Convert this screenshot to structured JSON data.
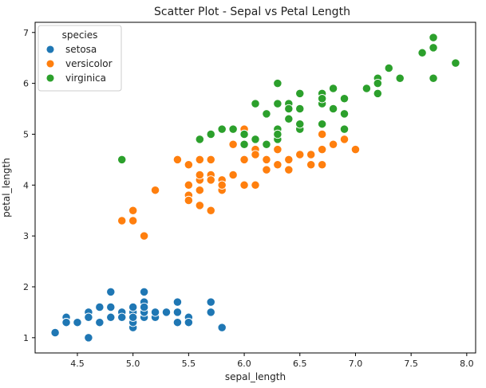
{
  "chart_data": {
    "type": "scatter",
    "title": "Scatter Plot - Sepal vs Petal Length",
    "xlabel": "sepal_length",
    "ylabel": "petal_length",
    "xlim": [
      4.12,
      8.08
    ],
    "ylim": [
      0.7,
      7.2
    ],
    "xticks": [
      4.5,
      5.0,
      5.5,
      6.0,
      6.5,
      7.0,
      7.5,
      8.0
    ],
    "yticks": [
      1,
      2,
      3,
      4,
      5,
      6,
      7
    ],
    "grid": false,
    "legend": {
      "title": "species",
      "position": "top-left"
    },
    "series": [
      {
        "name": "setosa",
        "color": "#1f77b4",
        "points": [
          [
            5.1,
            1.4
          ],
          [
            4.9,
            1.4
          ],
          [
            4.7,
            1.3
          ],
          [
            4.6,
            1.5
          ],
          [
            5.0,
            1.4
          ],
          [
            5.4,
            1.7
          ],
          [
            4.6,
            1.4
          ],
          [
            5.0,
            1.5
          ],
          [
            4.4,
            1.4
          ],
          [
            4.9,
            1.5
          ],
          [
            5.4,
            1.5
          ],
          [
            4.8,
            1.6
          ],
          [
            4.8,
            1.4
          ],
          [
            4.3,
            1.1
          ],
          [
            5.8,
            1.2
          ],
          [
            5.7,
            1.5
          ],
          [
            5.4,
            1.3
          ],
          [
            5.1,
            1.4
          ],
          [
            5.7,
            1.7
          ],
          [
            5.1,
            1.5
          ],
          [
            5.4,
            1.7
          ],
          [
            5.1,
            1.5
          ],
          [
            4.6,
            1.0
          ],
          [
            5.1,
            1.7
          ],
          [
            4.8,
            1.9
          ],
          [
            5.0,
            1.6
          ],
          [
            5.0,
            1.6
          ],
          [
            5.2,
            1.5
          ],
          [
            5.2,
            1.4
          ],
          [
            4.7,
            1.6
          ],
          [
            4.8,
            1.6
          ],
          [
            5.4,
            1.5
          ],
          [
            5.2,
            1.5
          ],
          [
            5.5,
            1.4
          ],
          [
            4.9,
            1.5
          ],
          [
            5.0,
            1.2
          ],
          [
            5.5,
            1.3
          ],
          [
            4.9,
            1.4
          ],
          [
            4.4,
            1.3
          ],
          [
            5.1,
            1.5
          ],
          [
            5.0,
            1.3
          ],
          [
            4.5,
            1.3
          ],
          [
            4.4,
            1.3
          ],
          [
            5.0,
            1.6
          ],
          [
            5.1,
            1.9
          ],
          [
            4.8,
            1.4
          ],
          [
            5.1,
            1.6
          ],
          [
            4.6,
            1.4
          ],
          [
            5.3,
            1.5
          ],
          [
            5.0,
            1.4
          ]
        ]
      },
      {
        "name": "versicolor",
        "color": "#ff7f0e",
        "points": [
          [
            7.0,
            4.7
          ],
          [
            6.4,
            4.5
          ],
          [
            6.9,
            4.9
          ],
          [
            5.5,
            4.0
          ],
          [
            6.5,
            4.6
          ],
          [
            5.7,
            4.5
          ],
          [
            6.3,
            4.7
          ],
          [
            4.9,
            3.3
          ],
          [
            6.6,
            4.6
          ],
          [
            5.2,
            3.9
          ],
          [
            5.0,
            3.5
          ],
          [
            5.9,
            4.2
          ],
          [
            6.0,
            4.0
          ],
          [
            6.1,
            4.7
          ],
          [
            5.6,
            3.6
          ],
          [
            6.7,
            4.4
          ],
          [
            5.6,
            4.5
          ],
          [
            5.8,
            4.1
          ],
          [
            6.2,
            4.5
          ],
          [
            5.6,
            3.9
          ],
          [
            5.9,
            4.8
          ],
          [
            6.1,
            4.0
          ],
          [
            6.3,
            4.9
          ],
          [
            6.1,
            4.7
          ],
          [
            6.4,
            4.3
          ],
          [
            6.6,
            4.4
          ],
          [
            6.8,
            4.8
          ],
          [
            6.7,
            5.0
          ],
          [
            6.0,
            4.5
          ],
          [
            5.7,
            3.5
          ],
          [
            5.5,
            3.8
          ],
          [
            5.5,
            3.7
          ],
          [
            5.8,
            3.9
          ],
          [
            6.0,
            5.1
          ],
          [
            5.4,
            4.5
          ],
          [
            6.0,
            4.5
          ],
          [
            6.7,
            4.7
          ],
          [
            6.3,
            4.4
          ],
          [
            5.6,
            4.1
          ],
          [
            5.5,
            4.0
          ],
          [
            5.5,
            4.4
          ],
          [
            6.1,
            4.6
          ],
          [
            5.8,
            4.0
          ],
          [
            5.0,
            3.3
          ],
          [
            5.6,
            4.2
          ],
          [
            5.7,
            4.2
          ],
          [
            5.7,
            4.2
          ],
          [
            6.2,
            4.3
          ],
          [
            5.1,
            3.0
          ],
          [
            5.7,
            4.1
          ]
        ]
      },
      {
        "name": "virginica",
        "color": "#2ca02c",
        "points": [
          [
            6.3,
            6.0
          ],
          [
            5.8,
            5.1
          ],
          [
            7.1,
            5.9
          ],
          [
            6.3,
            5.6
          ],
          [
            6.5,
            5.8
          ],
          [
            7.6,
            6.6
          ],
          [
            4.9,
            4.5
          ],
          [
            7.3,
            6.3
          ],
          [
            6.7,
            5.8
          ],
          [
            7.2,
            6.1
          ],
          [
            6.5,
            5.1
          ],
          [
            6.4,
            5.3
          ],
          [
            6.8,
            5.5
          ],
          [
            5.7,
            5.0
          ],
          [
            5.8,
            5.1
          ],
          [
            6.4,
            5.3
          ],
          [
            6.5,
            5.5
          ],
          [
            7.7,
            6.7
          ],
          [
            7.7,
            6.9
          ],
          [
            6.0,
            5.0
          ],
          [
            6.9,
            5.7
          ],
          [
            5.6,
            4.9
          ],
          [
            7.7,
            6.7
          ],
          [
            6.3,
            4.9
          ],
          [
            6.7,
            5.7
          ],
          [
            7.2,
            6.0
          ],
          [
            6.2,
            4.8
          ],
          [
            6.1,
            4.9
          ],
          [
            6.4,
            5.6
          ],
          [
            7.2,
            5.8
          ],
          [
            7.4,
            6.1
          ],
          [
            7.9,
            6.4
          ],
          [
            6.4,
            5.6
          ],
          [
            6.3,
            5.1
          ],
          [
            6.1,
            5.6
          ],
          [
            7.7,
            6.1
          ],
          [
            6.3,
            5.6
          ],
          [
            6.4,
            5.5
          ],
          [
            6.0,
            4.8
          ],
          [
            6.9,
            5.4
          ],
          [
            6.7,
            5.6
          ],
          [
            6.9,
            5.1
          ],
          [
            5.8,
            5.1
          ],
          [
            6.8,
            5.9
          ],
          [
            6.7,
            5.7
          ],
          [
            6.7,
            5.2
          ],
          [
            6.3,
            5.0
          ],
          [
            6.5,
            5.2
          ],
          [
            6.2,
            5.4
          ],
          [
            5.9,
            5.1
          ]
        ]
      }
    ]
  }
}
